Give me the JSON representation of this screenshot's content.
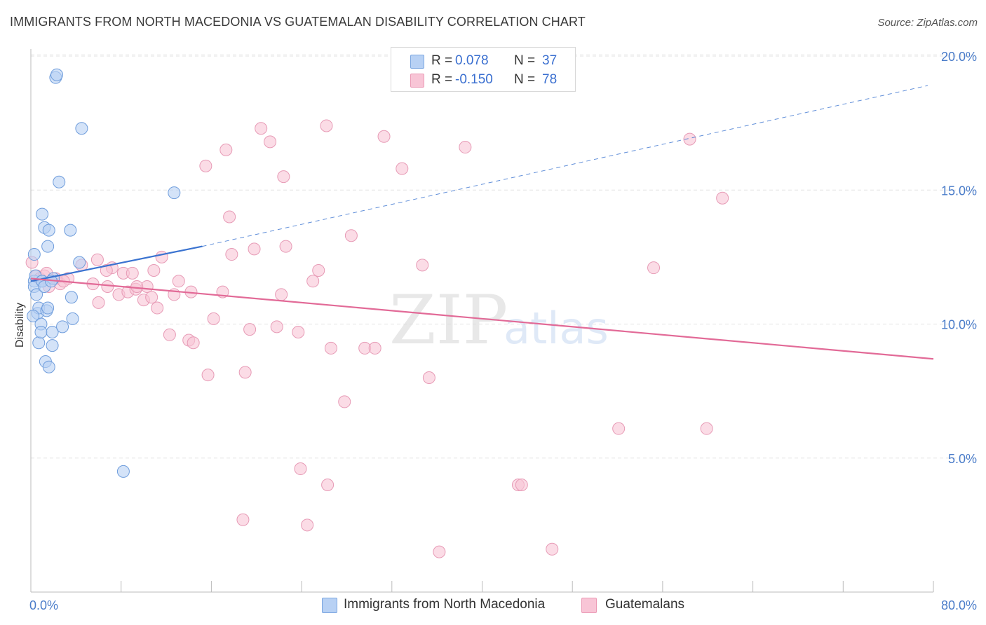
{
  "title": "IMMIGRANTS FROM NORTH MACEDONIA VS GUATEMALAN DISABILITY CORRELATION CHART",
  "source": "Source: ZipAtlas.com",
  "watermark": {
    "zip": "ZIP",
    "atlas": "atlas"
  },
  "legend": {
    "r_label": "R =",
    "n_label": "N =",
    "rows": [
      {
        "r": "0.078",
        "n": "37",
        "fill": "#b8d1f4",
        "stroke": "#7ba6e0"
      },
      {
        "r": "-0.150",
        "n": "78",
        "fill": "#f8c5d6",
        "stroke": "#eb9ab5"
      }
    ]
  },
  "bottom_legend": [
    {
      "label": "Immigrants from North Macedonia"
    },
    {
      "label": "Guatemalans"
    }
  ],
  "chart_data": {
    "type": "scatter",
    "title": "IMMIGRANTS FROM NORTH MACEDONIA VS GUATEMALAN DISABILITY CORRELATION CHART",
    "xlabel": "",
    "ylabel": "Disability",
    "xlim": [
      0,
      80
    ],
    "ylim": [
      0,
      20
    ],
    "x_tick_labels": {
      "min": "0.0%",
      "max": "80.0%"
    },
    "y_ticks": [
      {
        "value": 5,
        "label": "5.0%"
      },
      {
        "value": 10,
        "label": "10.0%"
      },
      {
        "value": 15,
        "label": "15.0%"
      },
      {
        "value": 20,
        "label": "20.0%"
      }
    ],
    "colors": {
      "blue": "#3a73d0",
      "pink": "#e26a97",
      "blue_fill": "#b8d1f4",
      "pink_fill": "#f8c5d6"
    },
    "series": [
      {
        "name": "Immigrants from North Macedonia",
        "color": "blue",
        "trend": {
          "x0": 0,
          "y0": 11.6,
          "x1_solid": 15.2,
          "y1_solid": 12.9,
          "x1_dashed": 79.5,
          "y1_dashed": 18.9
        },
        "points": [
          [
            0.3,
            12.6
          ],
          [
            0.3,
            11.6
          ],
          [
            0.3,
            11.4
          ],
          [
            0.4,
            11.8
          ],
          [
            0.5,
            11.1
          ],
          [
            0.6,
            10.4
          ],
          [
            0.7,
            10.6
          ],
          [
            0.7,
            9.3
          ],
          [
            0.9,
            10.0
          ],
          [
            0.9,
            9.7
          ],
          [
            1.0,
            11.6
          ],
          [
            1.0,
            11.6
          ],
          [
            1.0,
            14.1
          ],
          [
            1.2,
            11.4
          ],
          [
            1.2,
            13.6
          ],
          [
            1.3,
            8.6
          ],
          [
            1.4,
            10.5
          ],
          [
            1.5,
            10.6
          ],
          [
            1.5,
            12.9
          ],
          [
            1.6,
            8.4
          ],
          [
            1.6,
            13.5
          ],
          [
            1.9,
            9.7
          ],
          [
            1.9,
            9.2
          ],
          [
            2.0,
            11.7
          ],
          [
            2.2,
            19.2
          ],
          [
            2.3,
            19.3
          ],
          [
            2.5,
            15.3
          ],
          [
            2.8,
            9.9
          ],
          [
            3.5,
            13.5
          ],
          [
            3.6,
            11.0
          ],
          [
            3.7,
            10.2
          ],
          [
            4.3,
            12.3
          ],
          [
            4.5,
            17.3
          ],
          [
            8.2,
            4.5
          ],
          [
            12.7,
            14.9
          ],
          [
            1.8,
            11.6
          ],
          [
            0.2,
            10.3
          ]
        ]
      },
      {
        "name": "Guatemalans",
        "color": "pink",
        "trend": {
          "x0": 0,
          "y0": 11.7,
          "x1": 80,
          "y1": 8.7
        },
        "points": [
          [
            0.1,
            12.3
          ],
          [
            0.5,
            11.8
          ],
          [
            0.8,
            11.7
          ],
          [
            1.2,
            11.8
          ],
          [
            1.6,
            11.4
          ],
          [
            2.2,
            11.7
          ],
          [
            2.6,
            11.5
          ],
          [
            3.3,
            11.7
          ],
          [
            4.5,
            12.2
          ],
          [
            5.5,
            11.5
          ],
          [
            5.9,
            12.4
          ],
          [
            6.0,
            10.8
          ],
          [
            6.8,
            11.4
          ],
          [
            7.2,
            12.1
          ],
          [
            7.8,
            11.1
          ],
          [
            8.2,
            11.9
          ],
          [
            8.6,
            11.2
          ],
          [
            9.0,
            11.9
          ],
          [
            9.3,
            11.3
          ],
          [
            10.0,
            10.9
          ],
          [
            10.3,
            11.4
          ],
          [
            10.7,
            11.0
          ],
          [
            10.9,
            12.0
          ],
          [
            11.2,
            10.6
          ],
          [
            11.6,
            12.5
          ],
          [
            12.7,
            11.1
          ],
          [
            13.1,
            11.6
          ],
          [
            14.0,
            9.4
          ],
          [
            14.2,
            11.2
          ],
          [
            14.4,
            9.3
          ],
          [
            15.5,
            15.9
          ],
          [
            15.7,
            8.1
          ],
          [
            16.2,
            10.2
          ],
          [
            17.0,
            11.2
          ],
          [
            17.3,
            16.5
          ],
          [
            17.6,
            14.0
          ],
          [
            17.8,
            12.6
          ],
          [
            18.8,
            2.7
          ],
          [
            19.0,
            8.2
          ],
          [
            19.4,
            9.8
          ],
          [
            19.8,
            12.8
          ],
          [
            20.4,
            17.3
          ],
          [
            21.2,
            16.8
          ],
          [
            21.8,
            9.9
          ],
          [
            22.2,
            11.1
          ],
          [
            22.4,
            15.5
          ],
          [
            22.6,
            12.9
          ],
          [
            23.7,
            9.7
          ],
          [
            23.9,
            4.6
          ],
          [
            24.5,
            2.5
          ],
          [
            25.0,
            11.6
          ],
          [
            25.5,
            12.0
          ],
          [
            26.2,
            17.4
          ],
          [
            26.3,
            4.0
          ],
          [
            26.6,
            9.1
          ],
          [
            27.8,
            7.1
          ],
          [
            28.4,
            13.3
          ],
          [
            29.6,
            9.1
          ],
          [
            30.5,
            9.1
          ],
          [
            31.3,
            17.0
          ],
          [
            32.9,
            15.8
          ],
          [
            34.7,
            12.2
          ],
          [
            35.3,
            8.0
          ],
          [
            36.2,
            1.5
          ],
          [
            38.5,
            16.6
          ],
          [
            43.2,
            4.0
          ],
          [
            43.5,
            4.0
          ],
          [
            46.2,
            1.6
          ],
          [
            52.1,
            6.1
          ],
          [
            55.2,
            12.1
          ],
          [
            58.4,
            16.9
          ],
          [
            59.9,
            6.1
          ],
          [
            61.3,
            14.7
          ],
          [
            12.3,
            9.6
          ],
          [
            9.4,
            11.4
          ],
          [
            2.9,
            11.6
          ],
          [
            6.7,
            12.0
          ],
          [
            1.4,
            11.9
          ]
        ]
      }
    ]
  }
}
